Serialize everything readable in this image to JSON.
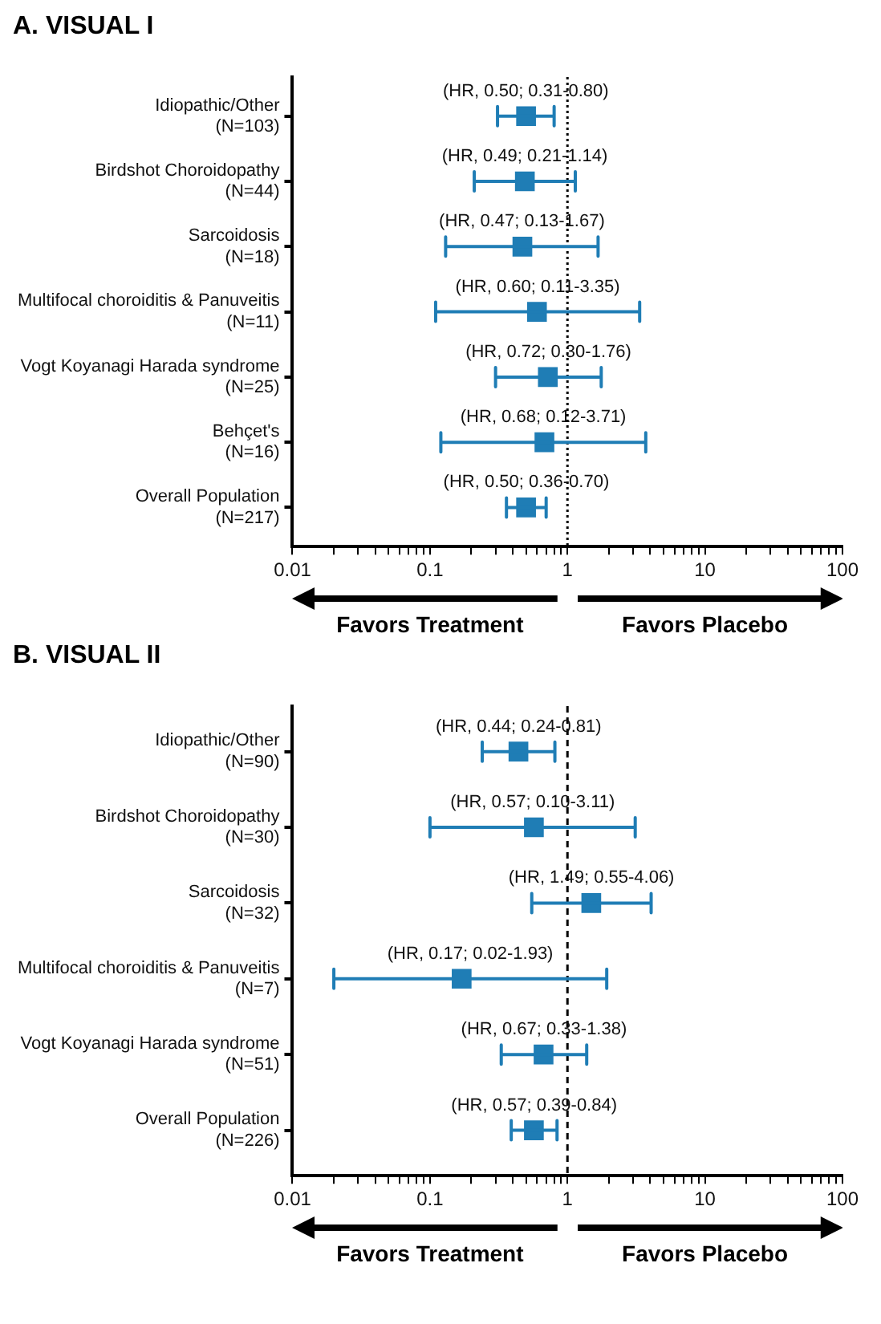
{
  "chart_data": [
    {
      "type": "scatter",
      "title": "A.   VISUAL I",
      "orientation": "horizontal",
      "marker": "square",
      "color": "#1f7db5",
      "grid": false,
      "log": "x",
      "categories": [
        "Idiopathic/Other\n(N=103)",
        "Birdshot Choroidopathy\n(N=44)",
        "Sarcoidosis\n(N=18)",
        "Multifocal choroiditis & Panuveitis\n(N=11)",
        "Vogt Koyanagi Harada syndrome\n(N=25)",
        "Behçet's\n(N=16)",
        "Overall Population\n(N=217)"
      ],
      "values": [
        0.5,
        0.49,
        0.47,
        0.6,
        0.72,
        0.68,
        0.5
      ],
      "errors": [
        [
          0.31,
          0.8
        ],
        [
          0.21,
          1.14
        ],
        [
          0.13,
          1.67
        ],
        [
          0.11,
          3.35
        ],
        [
          0.3,
          1.76
        ],
        [
          0.12,
          3.71
        ],
        [
          0.36,
          0.7
        ]
      ],
      "value_labels": [
        "(HR, 0.50; 0.31-0.80)",
        "(HR, 0.49; 0.21-1.14)",
        "(HR, 0.47; 0.13-1.67)",
        "(HR, 0.60; 0.11-3.35)",
        "(HR, 0.72; 0.30-1.76)",
        "(HR, 0.68; 0.12-3.71)",
        "(HR, 0.50; 0.36-0.70)"
      ],
      "xlim": [
        0.01,
        100
      ],
      "xticks": [
        0.01,
        {
          "value": 0.02,
          "label": null
        },
        {
          "value": 0.03,
          "label": null
        },
        {
          "value": 0.04,
          "label": null
        },
        {
          "value": 0.05,
          "label": null
        },
        {
          "value": 0.06,
          "label": null
        },
        {
          "value": 0.07,
          "label": null
        },
        {
          "value": 0.08,
          "label": null
        },
        {
          "value": 0.09,
          "label": null
        },
        0.1,
        {
          "value": 0.2,
          "label": null
        },
        {
          "value": 0.3,
          "label": null
        },
        {
          "value": 0.4,
          "label": null
        },
        {
          "value": 0.5,
          "label": null
        },
        {
          "value": 0.6,
          "label": null
        },
        {
          "value": 0.7,
          "label": null
        },
        {
          "value": 0.8,
          "label": null
        },
        {
          "value": 0.9,
          "label": null
        },
        1,
        {
          "value": 2,
          "label": null
        },
        {
          "value": 3,
          "label": null
        },
        {
          "value": 4,
          "label": null
        },
        {
          "value": 5,
          "label": null
        },
        {
          "value": 6,
          "label": null
        },
        {
          "value": 7,
          "label": null
        },
        {
          "value": 8,
          "label": null
        },
        {
          "value": 9,
          "label": null
        },
        10,
        {
          "value": 20,
          "label": null
        },
        {
          "value": 30,
          "label": null
        },
        {
          "value": 40,
          "label": null
        },
        {
          "value": 50,
          "label": null
        },
        {
          "value": 60,
          "label": null
        },
        {
          "value": 70,
          "label": null
        },
        {
          "value": 80,
          "label": null
        },
        {
          "value": 90,
          "label": null
        },
        100
      ],
      "ref_lines": [
        {
          "axis": "x",
          "value": 1,
          "line_style": "dotted",
          "color": "#000000"
        }
      ],
      "annotations": [
        "Favors Treatment",
        "Favors Placebo"
      ]
    },
    {
      "type": "scatter",
      "title": "B. VISUAL II",
      "orientation": "horizontal",
      "marker": "square",
      "color": "#1f7db5",
      "grid": false,
      "log": "x",
      "categories": [
        "Idiopathic/Other\n(N=90)",
        "Birdshot Choroidopathy\n(N=30)",
        "Sarcoidosis\n(N=32)",
        "Multifocal choroiditis & Panuveitis\n(N=7)",
        "Vogt Koyanagi Harada syndrome\n(N=51)",
        "Overall Population\n(N=226)"
      ],
      "values": [
        0.44,
        0.57,
        1.49,
        0.17,
        0.67,
        0.57
      ],
      "errors": [
        [
          0.24,
          0.81
        ],
        [
          0.1,
          3.11
        ],
        [
          0.55,
          4.06
        ],
        [
          0.02,
          1.93
        ],
        [
          0.33,
          1.38
        ],
        [
          0.39,
          0.84
        ]
      ],
      "value_labels": [
        "(HR, 0.44; 0.24-0.81)",
        "(HR, 0.57; 0.10-3.11)",
        "(HR, 1.49; 0.55-4.06)",
        "(HR, 0.17; 0.02-1.93)",
        "(HR, 0.67; 0.33-1.38)",
        "(HR, 0.57; 0.39-0.84)"
      ],
      "xlim": [
        0.01,
        100
      ],
      "xticks": [
        0.01,
        {
          "value": 0.02,
          "label": null
        },
        {
          "value": 0.03,
          "label": null
        },
        {
          "value": 0.04,
          "label": null
        },
        {
          "value": 0.05,
          "label": null
        },
        {
          "value": 0.06,
          "label": null
        },
        {
          "value": 0.07,
          "label": null
        },
        {
          "value": 0.08,
          "label": null
        },
        {
          "value": 0.09,
          "label": null
        },
        0.1,
        {
          "value": 0.2,
          "label": null
        },
        {
          "value": 0.3,
          "label": null
        },
        {
          "value": 0.4,
          "label": null
        },
        {
          "value": 0.5,
          "label": null
        },
        {
          "value": 0.6,
          "label": null
        },
        {
          "value": 0.7,
          "label": null
        },
        {
          "value": 0.8,
          "label": null
        },
        {
          "value": 0.9,
          "label": null
        },
        1,
        {
          "value": 2,
          "label": null
        },
        {
          "value": 3,
          "label": null
        },
        {
          "value": 4,
          "label": null
        },
        {
          "value": 5,
          "label": null
        },
        {
          "value": 6,
          "label": null
        },
        {
          "value": 7,
          "label": null
        },
        {
          "value": 8,
          "label": null
        },
        {
          "value": 9,
          "label": null
        },
        10,
        {
          "value": 20,
          "label": null
        },
        {
          "value": 30,
          "label": null
        },
        {
          "value": 40,
          "label": null
        },
        {
          "value": 50,
          "label": null
        },
        {
          "value": 60,
          "label": null
        },
        {
          "value": 70,
          "label": null
        },
        {
          "value": 80,
          "label": null
        },
        {
          "value": 90,
          "label": null
        },
        100
      ],
      "ref_lines": [
        {
          "axis": "x",
          "value": 1,
          "line_style": "dashed",
          "color": "#000000"
        }
      ],
      "annotations": [
        "Favors Treatment",
        "Favors Placebo"
      ]
    }
  ]
}
